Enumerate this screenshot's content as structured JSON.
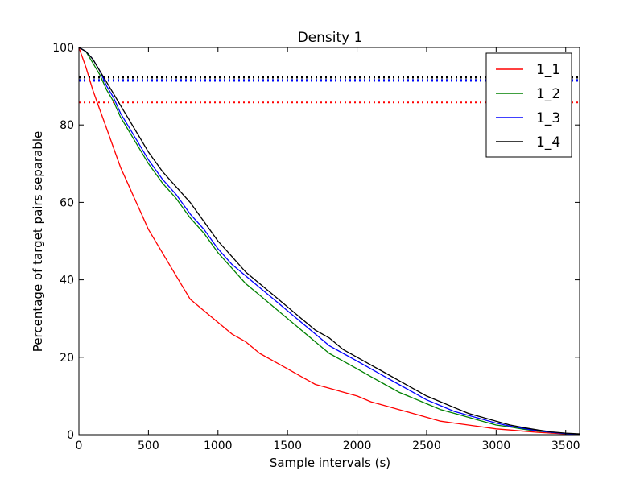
{
  "chart_data": {
    "type": "line",
    "title": "Density 1",
    "xlabel": "Sample intervals (s)",
    "ylabel": "Percentage of target pairs separable",
    "xlim": [
      0,
      3600
    ],
    "ylim": [
      0,
      100
    ],
    "xticks": [
      0,
      500,
      1000,
      1500,
      2000,
      2500,
      3000,
      3500
    ],
    "yticks": [
      0,
      20,
      40,
      60,
      80,
      100
    ],
    "grid": false,
    "legend_position": "top-right",
    "x": [
      0,
      50,
      100,
      150,
      200,
      250,
      300,
      350,
      400,
      450,
      500,
      600,
      700,
      800,
      900,
      1000,
      1100,
      1200,
      1300,
      1400,
      1500,
      1600,
      1700,
      1800,
      1900,
      2000,
      2100,
      2200,
      2300,
      2400,
      2500,
      2600,
      2700,
      2800,
      2900,
      3000,
      3100,
      3200,
      3300,
      3400,
      3500,
      3600
    ],
    "series": [
      {
        "name": "1_1",
        "color": "#ff0000",
        "values": [
          100,
          95,
          89,
          84,
          79,
          74,
          69,
          65,
          61,
          57,
          53,
          47,
          41,
          35,
          32,
          29,
          26,
          24,
          21,
          19,
          17,
          15,
          13,
          12,
          11,
          10,
          8.5,
          7.5,
          6.5,
          5.5,
          4.5,
          3.5,
          3.0,
          2.5,
          2.0,
          1.5,
          1.2,
          0.9,
          0.6,
          0.4,
          0.2,
          0.1
        ],
        "threshold": 85.8
      },
      {
        "name": "1_2",
        "color": "#008000",
        "values": [
          100,
          99,
          96,
          93,
          89,
          86,
          82,
          79,
          76,
          73,
          70,
          65,
          61,
          56,
          52,
          47,
          43,
          39,
          36,
          33,
          30,
          27,
          24,
          21,
          19,
          17,
          15,
          13,
          11,
          9.5,
          8.0,
          6.5,
          5.5,
          4.5,
          3.5,
          2.5,
          2.0,
          1.4,
          0.9,
          0.6,
          0.3,
          0.1
        ],
        "threshold": 91.5
      },
      {
        "name": "1_3",
        "color": "#0000ff",
        "values": [
          100,
          99,
          97,
          94,
          90,
          87,
          83,
          80,
          77,
          74,
          71,
          66,
          62,
          57,
          53,
          48,
          44,
          41,
          38,
          35,
          32,
          29,
          26,
          23,
          21,
          19,
          17,
          15,
          13,
          11,
          9.0,
          7.5,
          6.0,
          5.0,
          4.0,
          3.0,
          2.2,
          1.6,
          1.0,
          0.6,
          0.3,
          0.1
        ],
        "threshold": 91.5
      },
      {
        "name": "1_4",
        "color": "#000000",
        "values": [
          100,
          99,
          97,
          94,
          91,
          88,
          85,
          82,
          79,
          76,
          73,
          68,
          64,
          60,
          55,
          50,
          46,
          42,
          39,
          36,
          33,
          30,
          27,
          25,
          22,
          20,
          18,
          16,
          14,
          12,
          10,
          8.5,
          7.0,
          5.5,
          4.5,
          3.5,
          2.5,
          1.8,
          1.2,
          0.7,
          0.4,
          0.2
        ],
        "threshold": 92.3
      }
    ]
  }
}
